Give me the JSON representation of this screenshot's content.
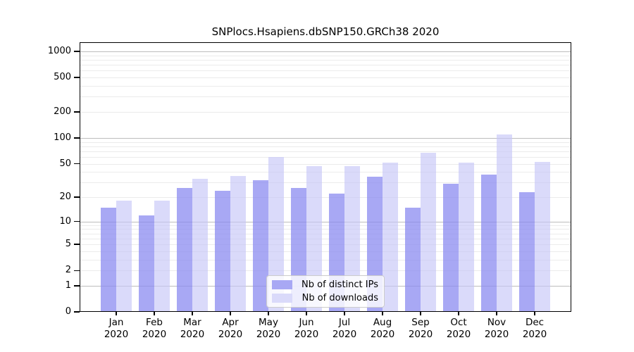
{
  "chart": {
    "title": "SNPlocs.Hsapiens.dbSNP150.GRCh38 2020"
  },
  "legend": {
    "items": [
      {
        "label": "Nb of distinct IPs",
        "swatch_color": "#a8a8f4"
      },
      {
        "label": "Nb of downloads",
        "swatch_color": "#dadafa"
      }
    ]
  },
  "colors": {
    "distinct_ips_bar": "rgba(138,138,240,0.74)",
    "downloads_bar": "rgba(199,199,248,0.66)",
    "distinct_ips_solid": "#a8a8f4",
    "downloads_solid": "#dadafa",
    "major_grid": "#bdbdbd",
    "minor_grid": "#ebebeb",
    "axis_frame": "#000000"
  },
  "chart_data": {
    "type": "bar",
    "title": "SNPlocs.Hsapiens.dbSNP150.GRCh38 2020",
    "categories": [
      "Jan",
      "Feb",
      "Mar",
      "Apr",
      "May",
      "Jun",
      "Jul",
      "Aug",
      "Sep",
      "Oct",
      "Nov",
      "Dec"
    ],
    "category_year": "2020",
    "series": [
      {
        "name": "Nb of distinct IPs",
        "values": [
          15,
          12,
          26,
          24,
          32,
          26,
          22,
          35,
          15,
          29,
          37,
          23
        ]
      },
      {
        "name": "Nb of downloads",
        "values": [
          18,
          18,
          33,
          36,
          60,
          47,
          47,
          51,
          67,
          51,
          110,
          52
        ]
      }
    ],
    "xlabel": "",
    "ylabel": "",
    "y_axis": {
      "scale": "log10(1+value)",
      "tick_values": [
        0,
        1,
        2,
        5,
        10,
        20,
        50,
        100,
        200,
        500,
        1000
      ],
      "major_grid_values": [
        1,
        10,
        100,
        1000
      ],
      "minor_grid_values": [
        2,
        3,
        4,
        5,
        6,
        7,
        8,
        9,
        20,
        30,
        40,
        50,
        60,
        70,
        80,
        90,
        200,
        300,
        400,
        500,
        600,
        700,
        800,
        900
      ],
      "ylim": [
        0,
        1200
      ]
    },
    "grid": "horizontal major+minor",
    "legend_position": "lower center"
  }
}
